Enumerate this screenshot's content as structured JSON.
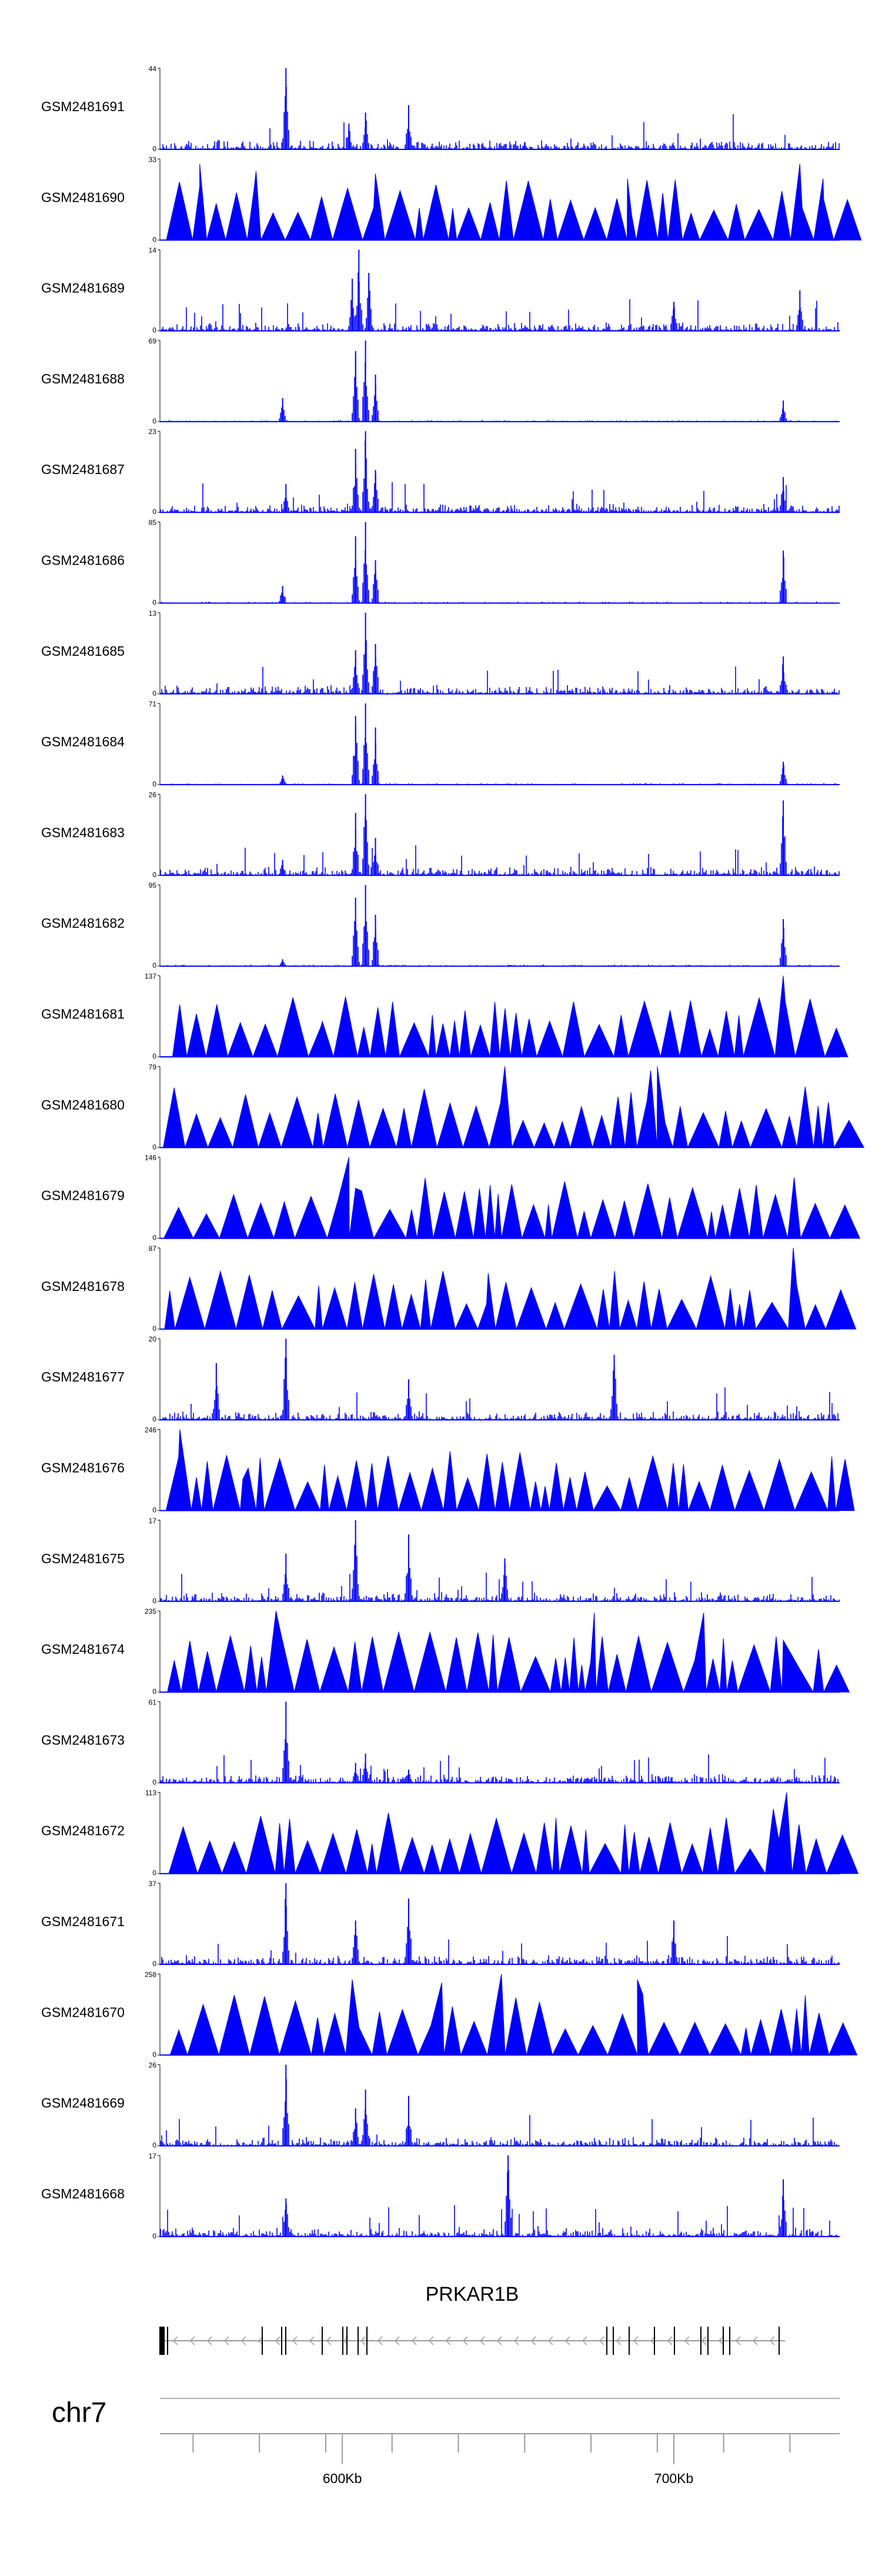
{
  "chart_data": {
    "type": "area",
    "description_type": "genome browser coverage tracks",
    "chromosome": "chr7",
    "gene": {
      "name": "PRKAR1B",
      "strand": "-"
    },
    "x_unit": "Kb",
    "x_range_kb": [
      545,
      750
    ],
    "x_ticks_kb": [
      555,
      575,
      595,
      615,
      635,
      655,
      675,
      695,
      715,
      735
    ],
    "x_tick_labels": [
      {
        "kb": 600,
        "label": "600Kb"
      },
      {
        "kb": 700,
        "label": "700Kb"
      }
    ],
    "color": "#0000ff",
    "tracks": [
      {
        "name": "GSM2481691",
        "ymax": 44,
        "ymin": 0,
        "style": "dense",
        "peaks": [
          [
            583,
            44
          ],
          [
            602,
            14
          ],
          [
            607,
            20
          ],
          [
            620,
            24
          ],
          [
            655,
            4
          ]
        ]
      },
      {
        "name": "GSM2481690",
        "ymax": 33,
        "ymin": 0,
        "style": "sparse",
        "peaks": [
          [
            557,
            31
          ],
          [
            574,
            28
          ],
          [
            610,
            27
          ],
          [
            686,
            25
          ],
          [
            738,
            31
          ],
          [
            745,
            25
          ]
        ]
      },
      {
        "name": "GSM2481689",
        "ymax": 14,
        "ymin": 0,
        "style": "dense",
        "peaks": [
          [
            603,
            9
          ],
          [
            605,
            14
          ],
          [
            608,
            10
          ],
          [
            700,
            5
          ],
          [
            738,
            7
          ]
        ]
      },
      {
        "name": "GSM2481688",
        "ymax": 69,
        "ymin": 0,
        "style": "peaks",
        "peaks": [
          [
            582,
            20
          ],
          [
            604,
            60
          ],
          [
            607,
            69
          ],
          [
            610,
            40
          ],
          [
            733,
            18
          ]
        ]
      },
      {
        "name": "GSM2481687",
        "ymax": 23,
        "ymin": 0,
        "style": "dense",
        "peaks": [
          [
            583,
            8
          ],
          [
            604,
            18
          ],
          [
            607,
            23
          ],
          [
            610,
            12
          ],
          [
            733,
            10
          ]
        ]
      },
      {
        "name": "GSM2481686",
        "ymax": 85,
        "ymin": 0,
        "style": "peaks",
        "peaks": [
          [
            582,
            18
          ],
          [
            604,
            70
          ],
          [
            607,
            85
          ],
          [
            610,
            45
          ],
          [
            733,
            55
          ]
        ]
      },
      {
        "name": "GSM2481685",
        "ymax": 13,
        "ymin": 0,
        "style": "dense",
        "peaks": [
          [
            604,
            7
          ],
          [
            607,
            13
          ],
          [
            610,
            8
          ],
          [
            733,
            6
          ]
        ]
      },
      {
        "name": "GSM2481684",
        "ymax": 71,
        "ymin": 0,
        "style": "peaks",
        "peaks": [
          [
            582,
            8
          ],
          [
            604,
            60
          ],
          [
            607,
            71
          ],
          [
            610,
            50
          ],
          [
            733,
            20
          ]
        ]
      },
      {
        "name": "GSM2481683",
        "ymax": 26,
        "ymin": 0,
        "style": "dense",
        "peaks": [
          [
            582,
            5
          ],
          [
            604,
            20
          ],
          [
            607,
            26
          ],
          [
            610,
            12
          ],
          [
            733,
            24
          ]
        ]
      },
      {
        "name": "GSM2481682",
        "ymax": 95,
        "ymin": 0,
        "style": "peaks",
        "peaks": [
          [
            582,
            8
          ],
          [
            604,
            80
          ],
          [
            607,
            95
          ],
          [
            610,
            60
          ],
          [
            733,
            55
          ]
        ]
      },
      {
        "name": "GSM2481681",
        "ymax": 137,
        "ymin": 0,
        "style": "sparse",
        "peaks": [
          [
            733,
            137
          ],
          [
            594,
            60
          ]
        ]
      },
      {
        "name": "GSM2481680",
        "ymax": 79,
        "ymin": 0,
        "style": "sparse",
        "peaks": [
          [
            649,
            79
          ],
          [
            693,
            75
          ],
          [
            695,
            79
          ]
        ]
      },
      {
        "name": "GSM2481679",
        "ymax": 146,
        "ymin": 0,
        "style": "sparse",
        "peaks": [
          [
            602,
            146
          ],
          [
            604,
            90
          ]
        ]
      },
      {
        "name": "GSM2481678",
        "ymax": 87,
        "ymin": 0,
        "style": "sparse",
        "peaks": [
          [
            736,
            87
          ],
          [
            644,
            60
          ]
        ]
      },
      {
        "name": "GSM2481677",
        "ymax": 20,
        "ymin": 0,
        "style": "dense",
        "peaks": [
          [
            562,
            14
          ],
          [
            583,
            20
          ],
          [
            620,
            10
          ],
          [
            682,
            16
          ]
        ]
      },
      {
        "name": "GSM2481676",
        "ymax": 246,
        "ymin": 0,
        "style": "sparse",
        "peaks": [
          [
            551,
            246
          ],
          [
            570,
            95
          ]
        ]
      },
      {
        "name": "GSM2481675",
        "ymax": 17,
        "ymin": 0,
        "style": "dense",
        "peaks": [
          [
            583,
            10
          ],
          [
            604,
            17
          ],
          [
            620,
            14
          ],
          [
            649,
            9
          ]
        ]
      },
      {
        "name": "GSM2481674",
        "ymax": 235,
        "ymin": 0,
        "style": "sparse",
        "peaks": [
          [
            580,
            235
          ],
          [
            709,
            230
          ],
          [
            676,
            230
          ],
          [
            733,
            150
          ]
        ]
      },
      {
        "name": "GSM2481673",
        "ymax": 61,
        "ymin": 0,
        "style": "dense",
        "peaks": [
          [
            583,
            61
          ],
          [
            604,
            15
          ],
          [
            607,
            22
          ],
          [
            620,
            10
          ]
        ]
      },
      {
        "name": "GSM2481672",
        "ymax": 113,
        "ymin": 0,
        "style": "sparse",
        "peaks": [
          [
            734,
            113
          ],
          [
            730,
            90
          ]
        ]
      },
      {
        "name": "GSM2481671",
        "ymax": 37,
        "ymin": 0,
        "style": "dense",
        "peaks": [
          [
            583,
            37
          ],
          [
            604,
            20
          ],
          [
            620,
            30
          ],
          [
            700,
            20
          ]
        ]
      },
      {
        "name": "GSM2481670",
        "ymax": 258,
        "ymin": 0,
        "style": "sparse",
        "peaks": [
          [
            648,
            258
          ],
          [
            603,
            240
          ],
          [
            689,
            240
          ],
          [
            630,
            230
          ]
        ]
      },
      {
        "name": "GSM2481669",
        "ymax": 26,
        "ymin": 0,
        "style": "dense",
        "peaks": [
          [
            583,
            26
          ],
          [
            604,
            12
          ],
          [
            607,
            18
          ],
          [
            620,
            16
          ]
        ]
      },
      {
        "name": "GSM2481668",
        "ymax": 17,
        "ymin": 0,
        "style": "dense",
        "peaks": [
          [
            650,
            17
          ],
          [
            733,
            12
          ],
          [
            583,
            8
          ]
        ]
      }
    ]
  }
}
